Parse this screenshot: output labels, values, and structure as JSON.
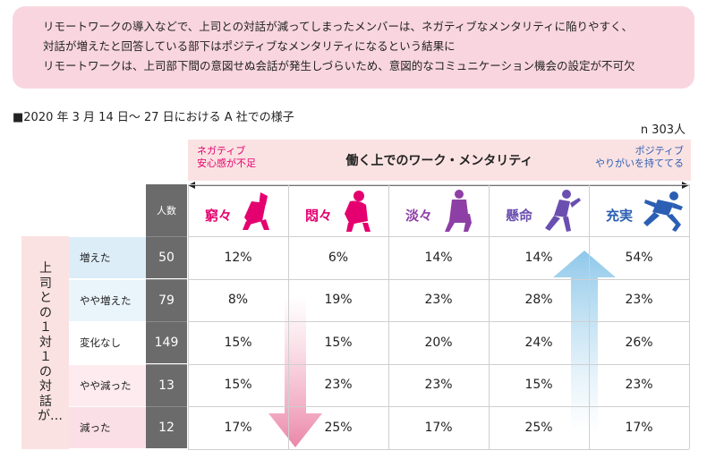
{
  "summary_lines": [
    "リモートワークの導入などで、上司との対話が減ってしまったメンバーは、ネガティブなメンタリティに陥りやすく、",
    "対話が増えたと回答している部下はポジティブなメンタリティになるという結果に",
    "リモートワークは、上司部下間の意図せぬ会話が発生しづらいため、意図的なコミュニケーション機会の設定が不可欠"
  ],
  "subtitle": "■2020 年 3 月 14 日～ 27 日における A 社での様子",
  "sample_size": "n 303人",
  "mentality_axis": {
    "title": "働く上でのワーク・メンタリティ",
    "negative_note_line1": "ネガティブ",
    "negative_note_line2": "安心感が不足",
    "positive_note_line1": "ポジティブ",
    "positive_note_line2": "やりがいを持ててる"
  },
  "people_header": "人数",
  "row_axis_label": "上司との１対１の対話が…",
  "colors": {
    "negative": "#e4006f",
    "positive": "#2b5fb3",
    "summary_bg": "#f9d6df",
    "header_bg": "#fbe2e2",
    "count_bg": "#6b6b6b"
  },
  "chart_data": {
    "type": "table",
    "categories": [
      "窮々",
      "悶々",
      "淡々",
      "懸命",
      "充実"
    ],
    "category_colors": [
      "#e4006f",
      "#e4006f",
      "#8e3fa6",
      "#6a4fb0",
      "#2b5fb3"
    ],
    "category_icons": [
      "kneeling-figure-icon",
      "crouching-figure-icon",
      "sitting-figure-icon",
      "pushing-figure-icon",
      "running-figure-icon"
    ],
    "rows": [
      {
        "label": "増えた",
        "count": "50",
        "values": [
          "12%",
          "6%",
          "14%",
          "14%",
          "54%"
        ],
        "bg": "#dcedf8"
      },
      {
        "label": "やや増えた",
        "count": "79",
        "values": [
          "8%",
          "19%",
          "23%",
          "28%",
          "23%"
        ],
        "bg": "#eaf4fb"
      },
      {
        "label": "変化なし",
        "count": "149",
        "values": [
          "15%",
          "15%",
          "20%",
          "24%",
          "26%"
        ],
        "bg": "#ffffff"
      },
      {
        "label": "やや減った",
        "count": "13",
        "values": [
          "15%",
          "23%",
          "23%",
          "15%",
          "23%"
        ],
        "bg": "#fdebef"
      },
      {
        "label": "減った",
        "count": "12",
        "values": [
          "17%",
          "25%",
          "17%",
          "25%",
          "17%"
        ],
        "bg": "#fbdfe6"
      }
    ]
  }
}
